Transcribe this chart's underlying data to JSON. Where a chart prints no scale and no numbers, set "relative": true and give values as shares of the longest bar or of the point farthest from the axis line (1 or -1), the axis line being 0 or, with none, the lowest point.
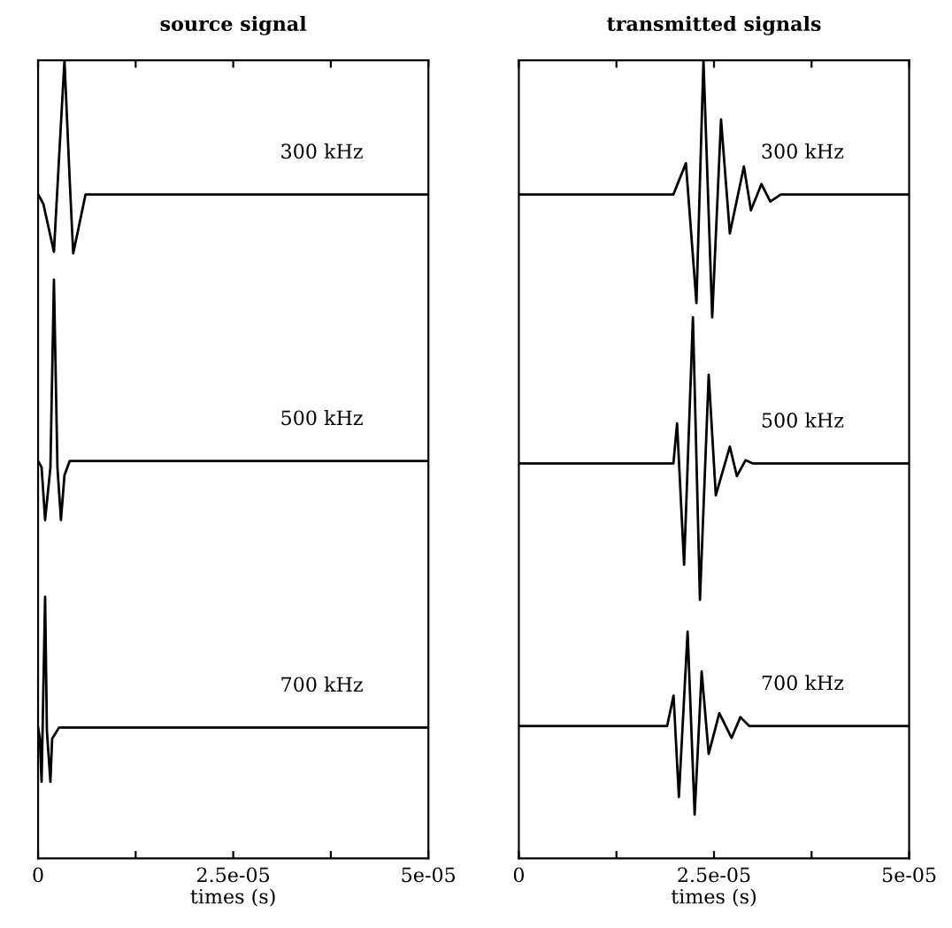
{
  "chart_data": [
    {
      "type": "line",
      "title": "source signal",
      "xlabel": "times (s)",
      "relative": true,
      "xlim": [
        0,
        5e-05
      ],
      "xticks": [
        0,
        {
          "value": 1.25e-05,
          "label": null
        },
        {
          "value": 2.5e-05,
          "label": "2.5e-05"
        },
        {
          "value": 3.75e-05,
          "label": null
        },
        {
          "value": 5e-05,
          "label": "5e-05"
        }
      ],
      "grid": false,
      "legend": false,
      "marker": "none",
      "line_style": "solid",
      "series": [
        {
          "name": "300 kHz",
          "color": "#000000",
          "x": [
            0,
            6.8e-07,
            2.03e-06,
            2.7e-06,
            3.38e-06,
            4.05e-06,
            4.5e-06,
            5.4e-06,
            6.08e-06,
            5e-05
          ],
          "values": [
            0.832,
            0.82,
            0.76,
            0.88,
            1.0,
            0.85,
            0.758,
            0.8,
            0.832,
            0.832
          ]
        },
        {
          "name": "500 kHz",
          "color": "#000000",
          "x": [
            0,
            4.5e-07,
            9e-07,
            1.58e-06,
            2.03e-06,
            2.48e-06,
            2.93e-06,
            3.38e-06,
            4.05e-06,
            5e-05
          ],
          "values": [
            0.498,
            0.49,
            0.424,
            0.49,
            0.725,
            0.49,
            0.424,
            0.48,
            0.498,
            0.498
          ]
        },
        {
          "name": "700 kHz",
          "color": "#000000",
          "x": [
            0,
            2.3e-07,
            4.5e-07,
            9e-07,
            1.13e-06,
            1.58e-06,
            1.8e-06,
            2.7e-06,
            5e-05
          ],
          "values": [
            0.164,
            0.15,
            0.096,
            0.328,
            0.16,
            0.096,
            0.15,
            0.164,
            0.164
          ]
        }
      ]
    },
    {
      "type": "line",
      "title": "transmitted signals",
      "xlabel": "times (s)",
      "relative": true,
      "xlim": [
        0,
        5e-05
      ],
      "xticks": [
        0,
        {
          "value": 1.25e-05,
          "label": null
        },
        {
          "value": 2.5e-05,
          "label": "2.5e-05"
        },
        {
          "value": 3.75e-05,
          "label": null
        },
        {
          "value": 5e-05,
          "label": "5e-05"
        }
      ],
      "grid": false,
      "legend": false,
      "marker": "none",
      "line_style": "solid",
      "series": [
        {
          "name": "300 kHz",
          "color": "#000000",
          "x": [
            0,
            1.98e-05,
            2.14e-05,
            2.275e-05,
            2.365e-05,
            2.477e-05,
            2.59e-05,
            2.703e-05,
            2.883e-05,
            2.973e-05,
            3.108e-05,
            3.221e-05,
            3.356e-05,
            5e-05
          ],
          "values": [
            0.832,
            0.832,
            0.871,
            0.696,
            1.0,
            0.678,
            0.926,
            0.783,
            0.867,
            0.812,
            0.845,
            0.823,
            0.832,
            0.832
          ]
        },
        {
          "name": "500 kHz",
          "color": "#000000",
          "x": [
            0,
            1.98e-05,
            2.027e-05,
            2.117e-05,
            2.23e-05,
            2.32e-05,
            2.432e-05,
            2.523e-05,
            2.703e-05,
            2.793e-05,
            2.905e-05,
            2.995e-05,
            5e-05
          ],
          "values": [
            0.495,
            0.495,
            0.545,
            0.368,
            0.678,
            0.324,
            0.606,
            0.455,
            0.516,
            0.479,
            0.499,
            0.495,
            0.495
          ]
        },
        {
          "name": "700 kHz",
          "color": "#000000",
          "x": [
            0,
            1.9e-05,
            1.982e-05,
            2.05e-05,
            2.162e-05,
            2.252e-05,
            2.342e-05,
            2.432e-05,
            2.568e-05,
            2.725e-05,
            2.838e-05,
            2.95e-05,
            5e-05
          ],
          "values": [
            0.166,
            0.166,
            0.204,
            0.077,
            0.284,
            0.055,
            0.234,
            0.131,
            0.182,
            0.151,
            0.177,
            0.166,
            0.166
          ]
        }
      ]
    }
  ]
}
